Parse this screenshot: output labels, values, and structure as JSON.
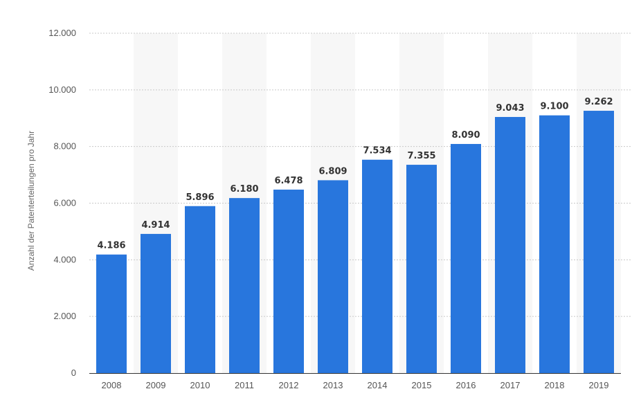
{
  "chart_data": {
    "type": "bar",
    "categories": [
      "2008",
      "2009",
      "2010",
      "2011",
      "2012",
      "2013",
      "2014",
      "2015",
      "2016",
      "2017",
      "2018",
      "2019"
    ],
    "values": [
      4186,
      4914,
      5896,
      6180,
      6478,
      6809,
      7534,
      7355,
      8090,
      9043,
      9100,
      9262
    ],
    "value_labels": [
      "4.186",
      "4.914",
      "5.896",
      "6.180",
      "6.478",
      "6.809",
      "7.534",
      "7.355",
      "8.090",
      "9.043",
      "9.100",
      "9.262"
    ],
    "ylabel": "Anzahl der Patenterteilungen pro Jahr",
    "ylim": [
      0,
      12000
    ],
    "yticks": [
      0,
      2000,
      4000,
      6000,
      8000,
      10000,
      12000
    ],
    "ytick_labels": [
      "0",
      "2.000",
      "4.000",
      "6.000",
      "8.000",
      "10.000",
      "12.000"
    ],
    "grid": true,
    "legend": "none",
    "colors": {
      "bar": "#2876dd",
      "alt_band": "#f7f7f7",
      "grid": "#c8c8c8",
      "baseline": "#333333"
    }
  }
}
